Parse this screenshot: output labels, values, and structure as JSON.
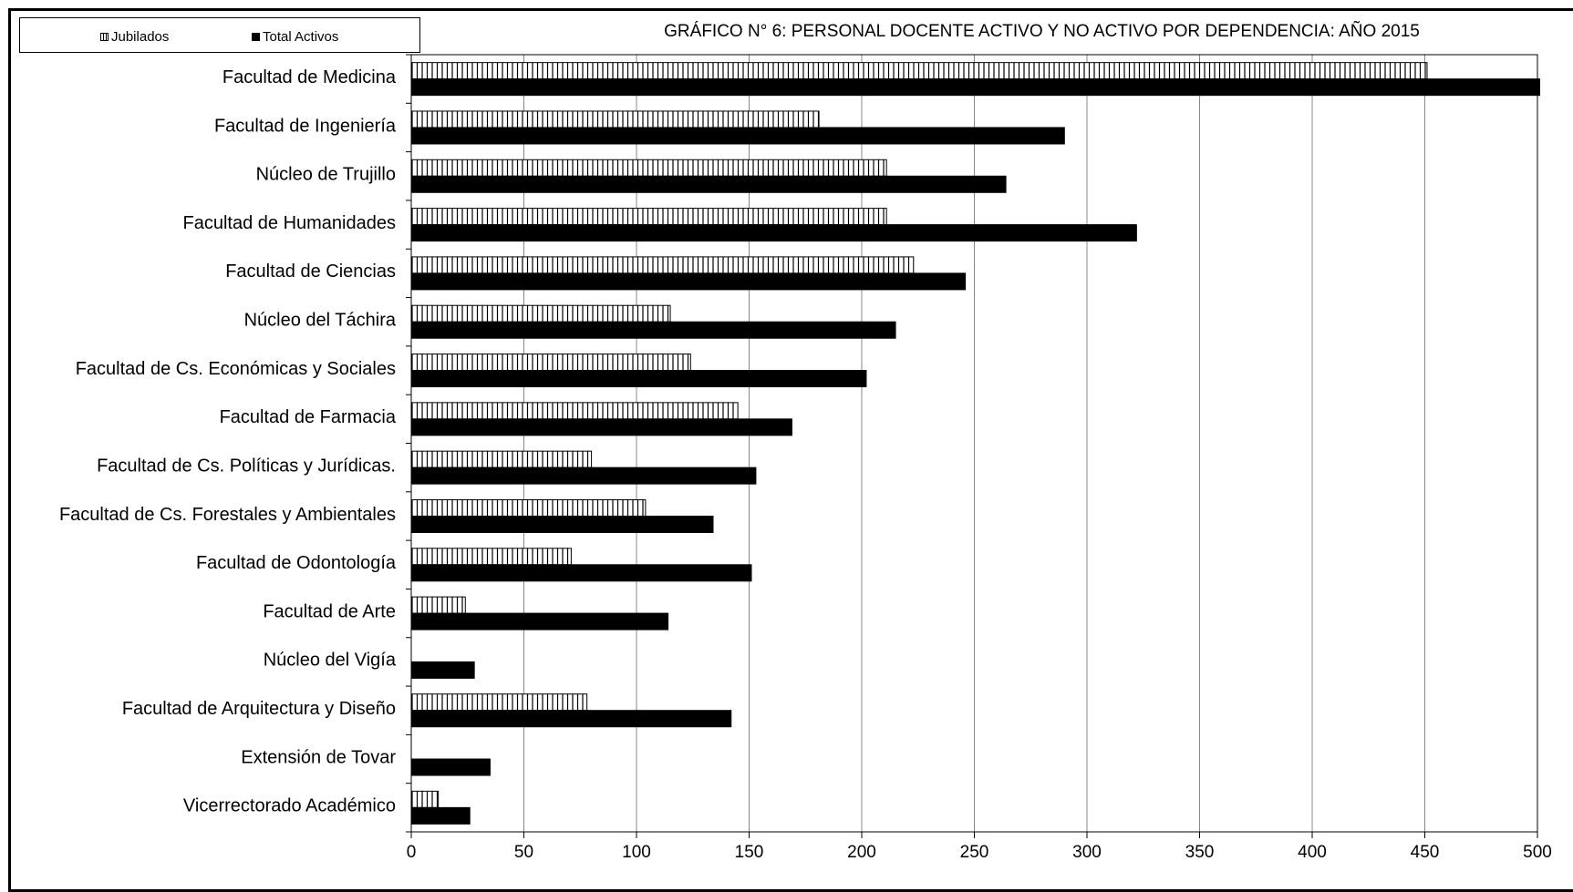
{
  "chart_data": {
    "type": "bar",
    "orientation": "horizontal",
    "title": "GRÁFICO N° 6: PERSONAL DOCENTE ACTIVO Y NO ACTIVO POR DEPENDENCIA: AÑO 2015",
    "categories": [
      "Facultad de Medicina",
      "Facultad de Ingeniería",
      "Núcleo de Trujillo",
      "Facultad de Humanidades",
      "Facultad de Ciencias",
      "Núcleo del Táchira",
      "Facultad de Cs. Económicas y Sociales",
      "Facultad de Farmacia",
      "Facultad de Cs. Políticas y Jurídicas.",
      "Facultad de Cs. Forestales y Ambientales",
      "Facultad de Odontología",
      "Facultad de Arte",
      "Núcleo del Vigía",
      "Facultad de Arquitectura y Diseño",
      "Extensión de Tovar",
      "Vicerrectorado Académico"
    ],
    "series": [
      {
        "name": "Jubilados",
        "pattern": "vertical-hatch",
        "color": "#000000",
        "values": [
          451,
          181,
          211,
          211,
          223,
          115,
          124,
          145,
          80,
          104,
          71,
          24,
          0,
          78,
          0,
          12
        ]
      },
      {
        "name": "Total Activos",
        "pattern": "solid",
        "color": "#000000",
        "values": [
          501,
          290,
          264,
          322,
          246,
          215,
          202,
          169,
          153,
          134,
          151,
          114,
          28,
          142,
          35,
          26
        ]
      }
    ],
    "xlim": [
      0,
      500
    ],
    "xticks": [
      "0",
      "50",
      "100",
      "150",
      "200",
      "250",
      "300",
      "350",
      "400",
      "450",
      "500"
    ],
    "grid": true,
    "legend_position": "top-left"
  }
}
